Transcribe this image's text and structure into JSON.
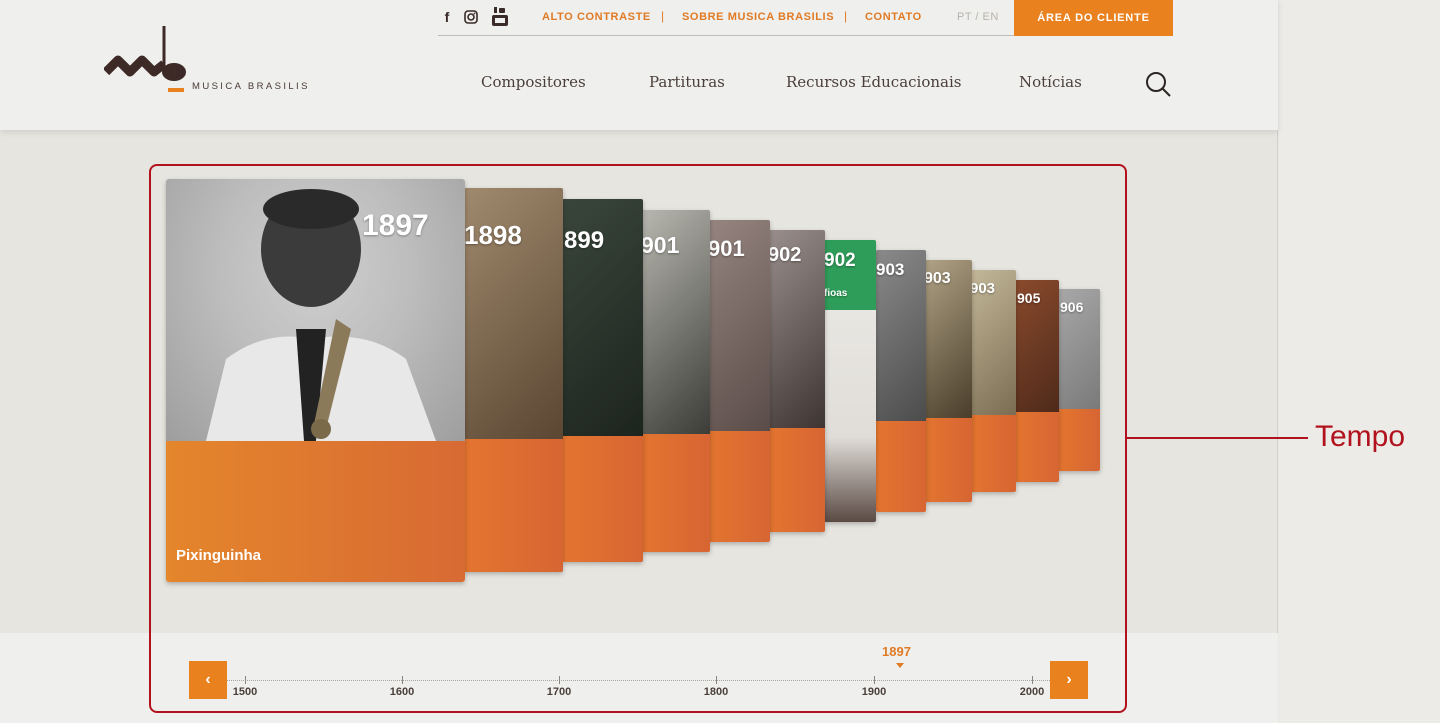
{
  "header": {
    "social": [
      "facebook-icon",
      "instagram-icon",
      "youtube-icon"
    ],
    "social_glyphs": [
      "f",
      "◎",
      "You\nTube"
    ],
    "links": [
      "ALTO CONTRASTE",
      "SOBRE MUSICA BRASILIS",
      "CONTATO"
    ],
    "separator": "|",
    "lang": "PT / EN",
    "client_button": "ÁREA DO CLIENTE",
    "logo_text": "MUSICA BRASILIS",
    "nav": [
      "Compositores",
      "Partituras",
      "Recursos Educacionais",
      "Notícias"
    ]
  },
  "carousel": {
    "cards": [
      {
        "year": "1897",
        "name": "Pixinguinha",
        "tone": "#bdbdbd"
      },
      {
        "year": "1898",
        "tone": "#8f7a62"
      },
      {
        "year": "899",
        "tone": "#2f3a30"
      },
      {
        "year": "901",
        "tone": "#7a7a72"
      },
      {
        "year": "901",
        "tone": "#7c6a66"
      },
      {
        "year": "902",
        "tone": "#5e5350"
      },
      {
        "year": "902",
        "subtitle": "fioas",
        "tone": "#2f9d5a"
      },
      {
        "year": "903",
        "tone": "#6c6c6c"
      },
      {
        "year": "903",
        "tone": "#8b7d5f"
      },
      {
        "year": "903",
        "tone": "#a49a83"
      },
      {
        "year": "905",
        "tone": "#6b3a24"
      },
      {
        "year": "906",
        "tone": "#9a9a9a"
      }
    ]
  },
  "timeline": {
    "prev": "‹",
    "next": "›",
    "ticks": [
      "1500",
      "1600",
      "1700",
      "1800",
      "1900",
      "2000"
    ],
    "current": "1897"
  },
  "annotation": "Tempo",
  "colors": {
    "accent": "#e8811e",
    "annotation": "#b2121d"
  }
}
